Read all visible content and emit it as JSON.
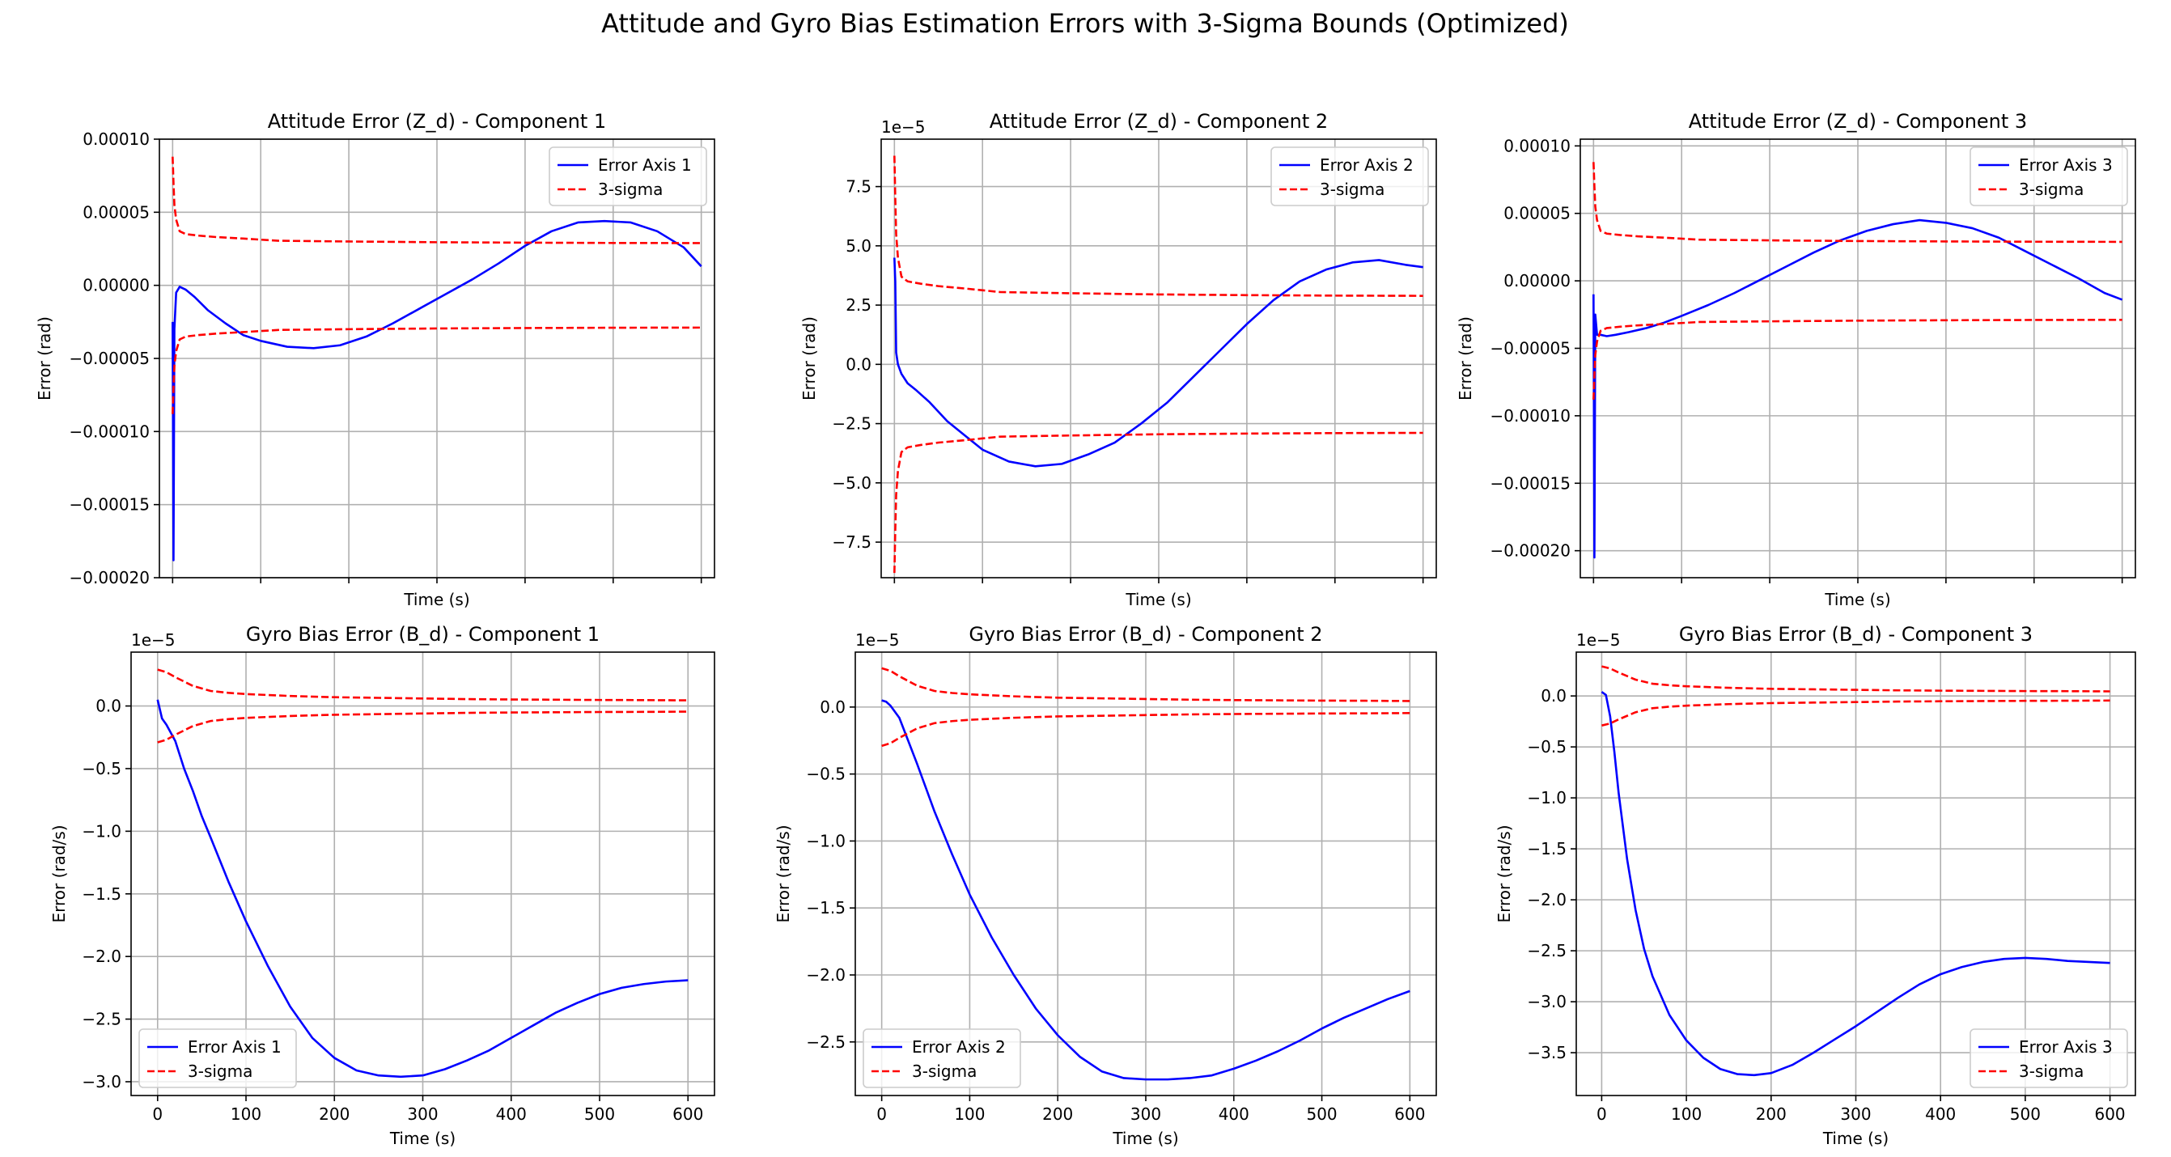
{
  "figure": {
    "title": "Attitude and Gyro Bias Estimation Errors with 3-Sigma Bounds (Optimized)"
  },
  "chart_data": [
    {
      "type": "line",
      "title": "Attitude Error (Z_d) - Component 1",
      "xlabel": "Time (s)",
      "ylabel": "Error (rad)",
      "xlim": [
        -15,
        615
      ],
      "ylim": [
        -0.0002,
        0.0001
      ],
      "xticks": [
        0,
        100,
        200,
        300,
        400,
        500,
        600
      ],
      "xtick_labels": false,
      "yticks": [
        -0.0002,
        -0.00015,
        -0.0001,
        -5e-05,
        0,
        5e-05,
        0.0001
      ],
      "ytick_labels": [
        "−0.00020",
        "−0.00015",
        "−0.00010",
        "−0.00005",
        "0.00000",
        "0.00005",
        "0.00010"
      ],
      "offset_text": "",
      "grid": true,
      "legend_loc": "upper-right",
      "series": [
        {
          "name": "Error Axis 1",
          "color": "#0000ff",
          "style": "solid",
          "width": 2.6,
          "x": [
            0,
            1,
            2,
            4,
            8,
            15,
            25,
            40,
            60,
            80,
            100,
            130,
            160,
            190,
            220,
            250,
            280,
            310,
            340,
            370,
            400,
            430,
            460,
            490,
            520,
            550,
            580,
            600
          ],
          "y": [
            -2.5e-05,
            -0.000188,
            -3e-05,
            -5e-06,
            -1e-06,
            -3e-06,
            -8e-06,
            -1.7e-05,
            -2.6e-05,
            -3.4e-05,
            -3.8e-05,
            -4.2e-05,
            -4.3e-05,
            -4.1e-05,
            -3.5e-05,
            -2.6e-05,
            -1.6e-05,
            -6e-06,
            4e-06,
            1.5e-05,
            2.7e-05,
            3.7e-05,
            4.3e-05,
            4.4e-05,
            4.3e-05,
            3.7e-05,
            2.6e-05,
            1.3e-05
          ]
        },
        {
          "name": "3-sigma",
          "color": "#ff0000",
          "style": "dashed",
          "width": 2.6,
          "mirror": true,
          "x": [
            0,
            1,
            2,
            4,
            8,
            15,
            30,
            50,
            80,
            120,
            200,
            300,
            400,
            500,
            600
          ],
          "y": [
            8.8e-05,
            7e-05,
            5.5e-05,
            4.5e-05,
            3.7e-05,
            3.5e-05,
            3.4e-05,
            3.3e-05,
            3.2e-05,
            3.05e-05,
            3e-05,
            2.95e-05,
            2.92e-05,
            2.9e-05,
            2.89e-05
          ]
        }
      ]
    },
    {
      "type": "line",
      "title": "Attitude Error (Z_d) - Component 2",
      "xlabel": "Time (s)",
      "ylabel": "Error (rad)",
      "xlim": [
        -15,
        615
      ],
      "ylim": [
        -9e-05,
        9.5e-05
      ],
      "xticks": [
        0,
        100,
        200,
        300,
        400,
        500,
        600
      ],
      "xtick_labels": false,
      "yticks": [
        -7.5e-05,
        -5e-05,
        -2.5e-05,
        0,
        2.5e-05,
        5e-05,
        7.5e-05
      ],
      "ytick_labels": [
        "−7.5",
        "−5.0",
        "−2.5",
        "0.0",
        "2.5",
        "5.0",
        "7.5"
      ],
      "offset_text": "1e−5",
      "grid": true,
      "legend_loc": "upper-right",
      "series": [
        {
          "name": "Error Axis 2",
          "color": "#0000ff",
          "style": "solid",
          "width": 2.6,
          "x": [
            0,
            1,
            2,
            4,
            8,
            15,
            25,
            40,
            60,
            80,
            100,
            130,
            160,
            190,
            220,
            250,
            280,
            310,
            340,
            370,
            400,
            430,
            460,
            490,
            520,
            550,
            580,
            600
          ],
          "y": [
            4.5e-05,
            3.5e-05,
            5e-06,
            0,
            -4e-06,
            -8e-06,
            -1.1e-05,
            -1.6e-05,
            -2.4e-05,
            -3e-05,
            -3.6e-05,
            -4.1e-05,
            -4.3e-05,
            -4.2e-05,
            -3.8e-05,
            -3.3e-05,
            -2.5e-05,
            -1.6e-05,
            -5e-06,
            6e-06,
            1.7e-05,
            2.7e-05,
            3.5e-05,
            4e-05,
            4.3e-05,
            4.4e-05,
            4.2e-05,
            4.1e-05
          ]
        },
        {
          "name": "3-sigma",
          "color": "#ff0000",
          "style": "dashed",
          "width": 2.6,
          "mirror": true,
          "x": [
            0,
            1,
            2,
            4,
            8,
            15,
            30,
            50,
            80,
            120,
            200,
            300,
            400,
            500,
            600
          ],
          "y": [
            8.8e-05,
            7e-05,
            5.5e-05,
            4.5e-05,
            3.7e-05,
            3.5e-05,
            3.4e-05,
            3.3e-05,
            3.2e-05,
            3.05e-05,
            3e-05,
            2.95e-05,
            2.92e-05,
            2.9e-05,
            2.89e-05
          ]
        }
      ]
    },
    {
      "type": "line",
      "title": "Attitude Error (Z_d) - Component 3",
      "xlabel": "Time (s)",
      "ylabel": "Error (rad)",
      "xlim": [
        -15,
        615
      ],
      "ylim": [
        -0.00022,
        0.000105
      ],
      "xticks": [
        0,
        100,
        200,
        300,
        400,
        500,
        600
      ],
      "xtick_labels": false,
      "yticks": [
        -0.0002,
        -0.00015,
        -0.0001,
        -5e-05,
        0,
        5e-05,
        0.0001
      ],
      "ytick_labels": [
        "−0.00020",
        "−0.00015",
        "−0.00010",
        "−0.00005",
        "0.00000",
        "0.00005",
        "0.00010"
      ],
      "offset_text": "",
      "grid": true,
      "legend_loc": "upper-right",
      "series": [
        {
          "name": "Error Axis 3",
          "color": "#0000ff",
          "style": "solid",
          "width": 2.6,
          "x": [
            0,
            1,
            2,
            4,
            8,
            15,
            25,
            40,
            60,
            80,
            100,
            130,
            160,
            190,
            220,
            250,
            280,
            310,
            340,
            370,
            400,
            430,
            460,
            490,
            520,
            550,
            580,
            600
          ],
          "y": [
            -1e-05,
            -0.000205,
            -2.5e-05,
            -4e-05,
            -4e-05,
            -4.1e-05,
            -4e-05,
            -3.8e-05,
            -3.5e-05,
            -3.1e-05,
            -2.6e-05,
            -1.8e-05,
            -9e-06,
            1e-06,
            1.1e-05,
            2.1e-05,
            3e-05,
            3.7e-05,
            4.2e-05,
            4.5e-05,
            4.3e-05,
            3.9e-05,
            3.2e-05,
            2.2e-05,
            1.2e-05,
            2e-06,
            -9e-06,
            -1.4e-05
          ]
        },
        {
          "name": "3-sigma",
          "color": "#ff0000",
          "style": "dashed",
          "width": 2.6,
          "mirror": true,
          "x": [
            0,
            1,
            2,
            4,
            8,
            15,
            30,
            50,
            80,
            120,
            200,
            300,
            400,
            500,
            600
          ],
          "y": [
            8.8e-05,
            7e-05,
            5.5e-05,
            4.5e-05,
            3.7e-05,
            3.5e-05,
            3.4e-05,
            3.3e-05,
            3.2e-05,
            3.05e-05,
            3e-05,
            2.95e-05,
            2.92e-05,
            2.9e-05,
            2.89e-05
          ]
        }
      ]
    },
    {
      "type": "line",
      "title": "Gyro Bias Error (B_d) - Component 1",
      "xlabel": "Time (s)",
      "ylabel": "Error (rad/s)",
      "xlim": [
        -30,
        630
      ],
      "ylim": [
        -3.11e-05,
        4.3e-06
      ],
      "xticks": [
        0,
        100,
        200,
        300,
        400,
        500,
        600
      ],
      "xtick_labels": true,
      "yticks": [
        -3e-05,
        -2.5e-05,
        -2e-05,
        -1.5e-05,
        -1e-05,
        -5e-06,
        0
      ],
      "ytick_labels": [
        "−3.0",
        "−2.5",
        "−2.0",
        "−1.5",
        "−1.0",
        "−0.5",
        "0.0"
      ],
      "offset_text": "1e−5",
      "grid": true,
      "legend_loc": "lower-left",
      "series": [
        {
          "name": "Error Axis 1",
          "color": "#0000ff",
          "style": "solid",
          "width": 2.6,
          "x": [
            0,
            5,
            10,
            20,
            30,
            40,
            50,
            60,
            80,
            100,
            125,
            150,
            175,
            200,
            225,
            250,
            275,
            300,
            325,
            350,
            375,
            400,
            425,
            450,
            475,
            500,
            525,
            550,
            575,
            600
          ],
          "y": [
            5e-07,
            -1e-06,
            -1.5e-06,
            -2.8e-06,
            -5e-06,
            -6.8e-06,
            -8.8e-06,
            -1.05e-05,
            -1.4e-05,
            -1.72e-05,
            -2.08e-05,
            -2.4e-05,
            -2.65e-05,
            -2.81e-05,
            -2.91e-05,
            -2.95e-05,
            -2.96e-05,
            -2.95e-05,
            -2.9e-05,
            -2.83e-05,
            -2.75e-05,
            -2.65e-05,
            -2.55e-05,
            -2.45e-05,
            -2.37e-05,
            -2.3e-05,
            -2.25e-05,
            -2.22e-05,
            -2.2e-05,
            -2.19e-05
          ]
        },
        {
          "name": "3-sigma",
          "color": "#ff0000",
          "style": "dashed",
          "width": 2.6,
          "mirror": true,
          "x": [
            0,
            10,
            20,
            40,
            60,
            80,
            100,
            150,
            200,
            250,
            300,
            350,
            400,
            450,
            500,
            550,
            600
          ],
          "y": [
            2.9e-06,
            2.7e-06,
            2.3e-06,
            1.6e-06,
            1.2e-06,
            1.05e-06,
            9.5e-07,
            8e-07,
            7e-07,
            6.5e-07,
            6e-07,
            5.5e-07,
            5.2e-07,
            5e-07,
            4.8e-07,
            4.7e-07,
            4.5e-07
          ]
        }
      ]
    },
    {
      "type": "line",
      "title": "Gyro Bias Error (B_d) - Component 2",
      "xlabel": "Time (s)",
      "ylabel": "Error (rad/s)",
      "xlim": [
        -30,
        630
      ],
      "ylim": [
        -2.9e-05,
        4.1e-06
      ],
      "xticks": [
        0,
        100,
        200,
        300,
        400,
        500,
        600
      ],
      "xtick_labels": true,
      "yticks": [
        -2.5e-05,
        -2e-05,
        -1.5e-05,
        -1e-05,
        -5e-06,
        0
      ],
      "ytick_labels": [
        "−2.5",
        "−2.0",
        "−1.5",
        "−1.0",
        "−0.5",
        "0.0"
      ],
      "offset_text": "1e−5",
      "grid": true,
      "legend_loc": "lower-left",
      "series": [
        {
          "name": "Error Axis 2",
          "color": "#0000ff",
          "style": "solid",
          "width": 2.6,
          "x": [
            0,
            5,
            10,
            20,
            30,
            40,
            50,
            60,
            80,
            100,
            125,
            150,
            175,
            200,
            225,
            250,
            275,
            300,
            325,
            350,
            375,
            400,
            425,
            450,
            475,
            500,
            525,
            550,
            575,
            600
          ],
          "y": [
            5e-07,
            4e-07,
            1e-07,
            -8e-07,
            -2.5e-06,
            -4.2e-06,
            -6e-06,
            -7.8e-06,
            -1.1e-05,
            -1.4e-05,
            -1.72e-05,
            -2e-05,
            -2.25e-05,
            -2.45e-05,
            -2.61e-05,
            -2.72e-05,
            -2.77e-05,
            -2.78e-05,
            -2.78e-05,
            -2.77e-05,
            -2.75e-05,
            -2.7e-05,
            -2.64e-05,
            -2.57e-05,
            -2.49e-05,
            -2.4e-05,
            -2.32e-05,
            -2.25e-05,
            -2.18e-05,
            -2.12e-05
          ]
        },
        {
          "name": "3-sigma",
          "color": "#ff0000",
          "style": "dashed",
          "width": 2.6,
          "mirror": true,
          "x": [
            0,
            10,
            20,
            40,
            60,
            80,
            100,
            150,
            200,
            250,
            300,
            350,
            400,
            450,
            500,
            550,
            600
          ],
          "y": [
            2.9e-06,
            2.7e-06,
            2.3e-06,
            1.6e-06,
            1.2e-06,
            1.05e-06,
            9.5e-07,
            8e-07,
            7e-07,
            6.5e-07,
            6e-07,
            5.5e-07,
            5.2e-07,
            5e-07,
            4.8e-07,
            4.7e-07,
            4.5e-07
          ]
        }
      ]
    },
    {
      "type": "line",
      "title": "Gyro Bias Error (B_d) - Component 3",
      "xlabel": "Time (s)",
      "ylabel": "Error (rad/s)",
      "xlim": [
        -30,
        630
      ],
      "ylim": [
        -3.92e-05,
        4.3e-06
      ],
      "xticks": [
        0,
        100,
        200,
        300,
        400,
        500,
        600
      ],
      "xtick_labels": true,
      "yticks": [
        -3.5e-05,
        -3e-05,
        -2.5e-05,
        -2e-05,
        -1.5e-05,
        -1e-05,
        -5e-06,
        0
      ],
      "ytick_labels": [
        "−3.5",
        "−3.0",
        "−2.5",
        "−2.0",
        "−1.5",
        "−1.0",
        "−0.5",
        "0.0"
      ],
      "offset_text": "1e−5",
      "grid": true,
      "legend_loc": "lower-right",
      "series": [
        {
          "name": "Error Axis 3",
          "color": "#0000ff",
          "style": "solid",
          "width": 2.6,
          "x": [
            0,
            5,
            10,
            15,
            20,
            30,
            40,
            50,
            60,
            80,
            100,
            120,
            140,
            160,
            180,
            200,
            225,
            250,
            275,
            300,
            325,
            350,
            375,
            400,
            425,
            450,
            475,
            500,
            525,
            550,
            575,
            600
          ],
          "y": [
            4e-07,
            1e-07,
            -2e-06,
            -5.5e-06,
            -9.5e-06,
            -1.6e-05,
            -2.1e-05,
            -2.48e-05,
            -2.75e-05,
            -3.13e-05,
            -3.38e-05,
            -3.55e-05,
            -3.66e-05,
            -3.71e-05,
            -3.72e-05,
            -3.7e-05,
            -3.62e-05,
            -3.5e-05,
            -3.37e-05,
            -3.24e-05,
            -3.1e-05,
            -2.96e-05,
            -2.83e-05,
            -2.73e-05,
            -2.66e-05,
            -2.61e-05,
            -2.58e-05,
            -2.57e-05,
            -2.58e-05,
            -2.6e-05,
            -2.61e-05,
            -2.62e-05
          ]
        },
        {
          "name": "3-sigma",
          "color": "#ff0000",
          "style": "dashed",
          "width": 2.6,
          "mirror": true,
          "x": [
            0,
            10,
            20,
            40,
            60,
            80,
            100,
            150,
            200,
            250,
            300,
            350,
            400,
            450,
            500,
            550,
            600
          ],
          "y": [
            2.9e-06,
            2.7e-06,
            2.3e-06,
            1.6e-06,
            1.2e-06,
            1.05e-06,
            9.5e-07,
            8e-07,
            7e-07,
            6.5e-07,
            6e-07,
            5.5e-07,
            5.2e-07,
            5e-07,
            4.8e-07,
            4.7e-07,
            4.5e-07
          ]
        }
      ]
    }
  ]
}
